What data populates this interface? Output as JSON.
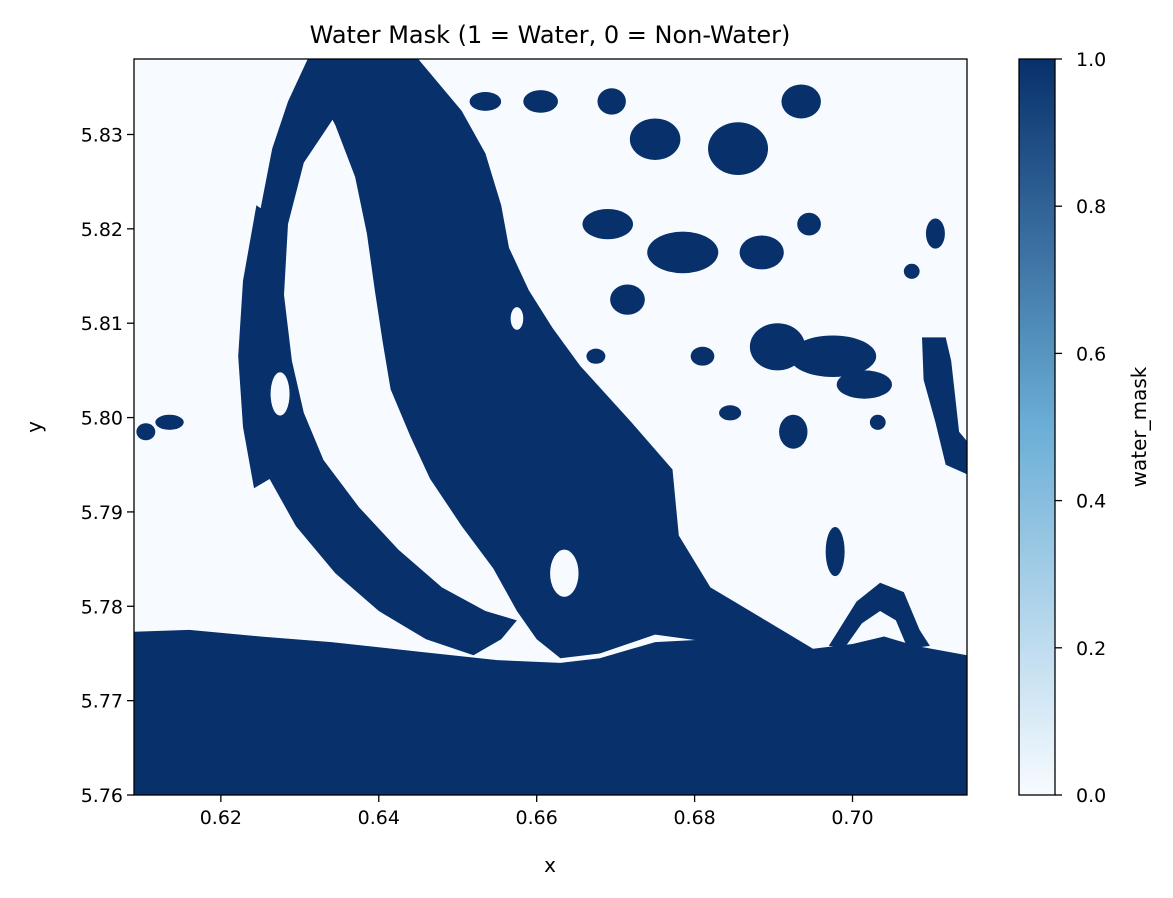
{
  "chart_data": {
    "type": "heatmap",
    "title": "Water Mask (1 = Water, 0 = Non-Water)",
    "xlabel": "x",
    "ylabel": "y",
    "xlim": [
      0.609,
      0.7145
    ],
    "ylim": [
      5.76,
      5.838
    ],
    "x_ticks": [
      0.62,
      0.64,
      0.66,
      0.68,
      0.7
    ],
    "x_tick_labels": [
      "0.62",
      "0.64",
      "0.66",
      "0.68",
      "0.70"
    ],
    "y_ticks": [
      5.76,
      5.77,
      5.78,
      5.79,
      5.8,
      5.81,
      5.82,
      5.83
    ],
    "y_tick_labels": [
      "5.76",
      "5.77",
      "5.78",
      "5.79",
      "5.80",
      "5.81",
      "5.82",
      "5.83"
    ],
    "grid": false,
    "colormap": "Blues",
    "value_range": [
      0,
      1
    ],
    "values": [
      0,
      1
    ],
    "colorbar": {
      "label": "water_mask",
      "ticks": [
        0.0,
        0.2,
        0.4,
        0.6,
        0.8,
        1.0
      ],
      "tick_labels": [
        "0.0",
        "0.2",
        "0.4",
        "0.6",
        "0.8",
        "1.0"
      ]
    },
    "colors": {
      "water": "#08306b",
      "non_water": "#f7fbff",
      "mid": "#6baed6"
    },
    "regions": {
      "sea": [
        [
          0.609,
          5.7773
        ],
        [
          0.616,
          5.7775
        ],
        [
          0.625,
          5.7768
        ],
        [
          0.634,
          5.7762
        ],
        [
          0.645,
          5.7752
        ],
        [
          0.655,
          5.7743
        ],
        [
          0.663,
          5.774
        ],
        [
          0.668,
          5.7745
        ],
        [
          0.675,
          5.7762
        ],
        [
          0.682,
          5.7765
        ],
        [
          0.688,
          5.7762
        ],
        [
          0.695,
          5.7755
        ],
        [
          0.7,
          5.776
        ],
        [
          0.704,
          5.7768
        ],
        [
          0.708,
          5.7758
        ],
        [
          0.7145,
          5.7748
        ],
        [
          0.7145,
          5.76
        ],
        [
          0.609,
          5.76
        ]
      ],
      "river_main": [
        [
          0.6375,
          5.838
        ],
        [
          0.645,
          5.838
        ],
        [
          0.6505,
          5.8325
        ],
        [
          0.6535,
          5.828
        ],
        [
          0.6555,
          5.8225
        ],
        [
          0.6565,
          5.818
        ],
        [
          0.659,
          5.8135
        ],
        [
          0.662,
          5.8095
        ],
        [
          0.6655,
          5.8055
        ],
        [
          0.672,
          5.7995
        ],
        [
          0.6772,
          5.7945
        ],
        [
          0.678,
          5.7875
        ],
        [
          0.682,
          5.782
        ],
        [
          0.689,
          5.7785
        ],
        [
          0.695,
          5.7755
        ],
        [
          0.69,
          5.775
        ],
        [
          0.682,
          5.7762
        ],
        [
          0.675,
          5.777
        ],
        [
          0.668,
          5.775
        ],
        [
          0.663,
          5.7745
        ],
        [
          0.66,
          5.7765
        ],
        [
          0.6575,
          5.7795
        ],
        [
          0.6545,
          5.784
        ],
        [
          0.6505,
          5.7885
        ],
        [
          0.6465,
          5.7935
        ],
        [
          0.644,
          5.798
        ],
        [
          0.6415,
          5.803
        ],
        [
          0.6405,
          5.808
        ],
        [
          0.6395,
          5.8135
        ],
        [
          0.6385,
          5.8195
        ],
        [
          0.637,
          5.8255
        ],
        [
          0.6345,
          5.831
        ],
        [
          0.632,
          5.835
        ]
      ],
      "channel_left": [
        [
          0.631,
          5.838
        ],
        [
          0.6375,
          5.838
        ],
        [
          0.6345,
          5.832
        ],
        [
          0.6305,
          5.827
        ],
        [
          0.6285,
          5.8205
        ],
        [
          0.628,
          5.813
        ],
        [
          0.629,
          5.806
        ],
        [
          0.6305,
          5.8005
        ],
        [
          0.633,
          5.7955
        ],
        [
          0.6375,
          5.7905
        ],
        [
          0.6425,
          5.786
        ],
        [
          0.648,
          5.782
        ],
        [
          0.6535,
          5.7795
        ],
        [
          0.6575,
          5.7785
        ],
        [
          0.6555,
          5.7765
        ],
        [
          0.652,
          5.7748
        ],
        [
          0.646,
          5.7765
        ],
        [
          0.64,
          5.7795
        ],
        [
          0.6345,
          5.7835
        ],
        [
          0.6295,
          5.7885
        ],
        [
          0.6255,
          5.7945
        ],
        [
          0.6235,
          5.801
        ],
        [
          0.623,
          5.808
        ],
        [
          0.6235,
          5.815
        ],
        [
          0.625,
          5.822
        ],
        [
          0.6265,
          5.8285
        ],
        [
          0.6285,
          5.8335
        ]
      ],
      "channel_mid": [
        [
          0.6405,
          5.8185
        ],
        [
          0.6435,
          5.8195
        ],
        [
          0.6455,
          5.8155
        ],
        [
          0.648,
          5.8105
        ],
        [
          0.6515,
          5.805
        ],
        [
          0.6555,
          5.7995
        ],
        [
          0.66,
          5.7945
        ],
        [
          0.6635,
          5.7895
        ],
        [
          0.6655,
          5.7845
        ],
        [
          0.6665,
          5.78
        ],
        [
          0.663,
          5.7775
        ],
        [
          0.6595,
          5.7785
        ],
        [
          0.6575,
          5.7815
        ],
        [
          0.6565,
          5.7855
        ],
        [
          0.6535,
          5.79
        ],
        [
          0.6495,
          5.795
        ],
        [
          0.646,
          5.8
        ],
        [
          0.643,
          5.8055
        ],
        [
          0.641,
          5.811
        ]
      ],
      "channel_far_left": [
        [
          0.6245,
          5.8225
        ],
        [
          0.6262,
          5.8215
        ],
        [
          0.6255,
          5.8135
        ],
        [
          0.6248,
          5.806
        ],
        [
          0.6255,
          5.7985
        ],
        [
          0.6262,
          5.7935
        ],
        [
          0.6242,
          5.7925
        ],
        [
          0.6228,
          5.799
        ],
        [
          0.6222,
          5.8065
        ],
        [
          0.6228,
          5.8145
        ]
      ],
      "tributary_right": [
        [
          0.7088,
          5.8085
        ],
        [
          0.7118,
          5.8085
        ],
        [
          0.7125,
          5.806
        ],
        [
          0.7135,
          5.7985
        ],
        [
          0.7145,
          5.7975
        ],
        [
          0.7145,
          5.794
        ],
        [
          0.7118,
          5.795
        ],
        [
          0.7105,
          5.7995
        ],
        [
          0.709,
          5.804
        ]
      ],
      "creek_right": [
        [
          0.697,
          5.7758
        ],
        [
          0.7005,
          5.7805
        ],
        [
          0.7035,
          5.7825
        ],
        [
          0.7065,
          5.7815
        ],
        [
          0.7085,
          5.7775
        ],
        [
          0.7098,
          5.7758
        ],
        [
          0.707,
          5.7755
        ],
        [
          0.7055,
          5.7785
        ],
        [
          0.7035,
          5.7795
        ],
        [
          0.7012,
          5.7782
        ],
        [
          0.699,
          5.7756
        ]
      ]
    },
    "islands": [
      {
        "cx": 0.6275,
        "cy": 5.8025,
        "rx": 0.0012,
        "ry": 0.0023
      },
      {
        "cx": 0.6225,
        "cy": 5.8215,
        "rx": 0.0008,
        "ry": 0.0015
      },
      {
        "cx": 0.6575,
        "cy": 5.8105,
        "rx": 0.0008,
        "ry": 0.0012
      },
      {
        "cx": 0.6635,
        "cy": 5.7835,
        "rx": 0.0018,
        "ry": 0.0025
      }
    ],
    "patches": [
      {
        "cx": 0.675,
        "cy": 5.8295,
        "rx": 0.0032,
        "ry": 0.0022
      },
      {
        "cx": 0.6855,
        "cy": 5.8285,
        "rx": 0.0038,
        "ry": 0.0028
      },
      {
        "cx": 0.6935,
        "cy": 5.8335,
        "rx": 0.0025,
        "ry": 0.0018
      },
      {
        "cx": 0.669,
        "cy": 5.8205,
        "rx": 0.0032,
        "ry": 0.0016
      },
      {
        "cx": 0.6785,
        "cy": 5.8175,
        "rx": 0.0045,
        "ry": 0.0022
      },
      {
        "cx": 0.6885,
        "cy": 5.8175,
        "rx": 0.0028,
        "ry": 0.0018
      },
      {
        "cx": 0.6715,
        "cy": 5.8125,
        "rx": 0.0022,
        "ry": 0.0016
      },
      {
        "cx": 0.6975,
        "cy": 5.8065,
        "rx": 0.0055,
        "ry": 0.0022
      },
      {
        "cx": 0.6905,
        "cy": 5.8075,
        "rx": 0.0035,
        "ry": 0.0025
      },
      {
        "cx": 0.7015,
        "cy": 5.8035,
        "rx": 0.0035,
        "ry": 0.0015
      },
      {
        "cx": 0.6925,
        "cy": 5.7985,
        "rx": 0.0018,
        "ry": 0.0018
      },
      {
        "cx": 0.6978,
        "cy": 5.7858,
        "rx": 0.0012,
        "ry": 0.0026
      },
      {
        "cx": 0.6945,
        "cy": 5.8205,
        "rx": 0.0015,
        "ry": 0.0012
      },
      {
        "cx": 0.681,
        "cy": 5.8065,
        "rx": 0.0015,
        "ry": 0.001
      },
      {
        "cx": 0.6605,
        "cy": 5.8335,
        "rx": 0.0022,
        "ry": 0.0012
      },
      {
        "cx": 0.6695,
        "cy": 5.8335,
        "rx": 0.0018,
        "ry": 0.0014
      },
      {
        "cx": 0.6535,
        "cy": 5.8335,
        "rx": 0.002,
        "ry": 0.001
      },
      {
        "cx": 0.6135,
        "cy": 5.7995,
        "rx": 0.0018,
        "ry": 0.0008
      },
      {
        "cx": 0.6105,
        "cy": 5.7985,
        "rx": 0.0012,
        "ry": 0.0009
      },
      {
        "cx": 0.7105,
        "cy": 5.8195,
        "rx": 0.0012,
        "ry": 0.0016
      },
      {
        "cx": 0.7075,
        "cy": 5.8155,
        "rx": 0.001,
        "ry": 0.0008
      },
      {
        "cx": 0.6845,
        "cy": 5.8005,
        "rx": 0.0014,
        "ry": 0.0008
      },
      {
        "cx": 0.7032,
        "cy": 5.7995,
        "rx": 0.001,
        "ry": 0.0008
      },
      {
        "cx": 0.6675,
        "cy": 5.8065,
        "rx": 0.0012,
        "ry": 0.0008
      }
    ]
  }
}
